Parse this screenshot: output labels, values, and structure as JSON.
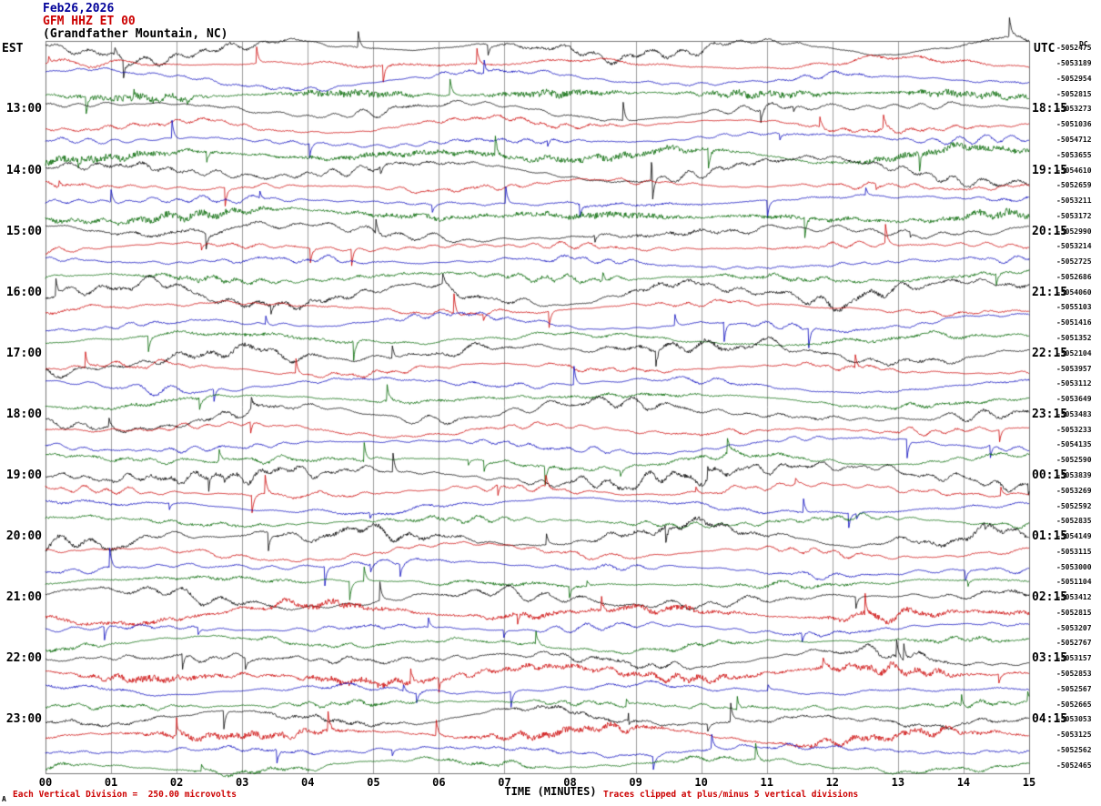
{
  "header": {
    "date": "Feb26,2026",
    "station_line": "GFM HHZ ET 00",
    "location_line": "(Grandfather Mountain, NC)",
    "left_timezone": "EST",
    "right_timezone": "UTC",
    "dc_column_header": "DC"
  },
  "footer": {
    "corner_marker": "A",
    "scale_note": "Each Vertical Division =  250.00 microvolts",
    "clip_note": "Traces clipped at plus/minus 5 vertical divisions"
  },
  "x_axis": {
    "title": "TIME (MINUTES)"
  },
  "chart_data": {
    "type": "line",
    "subtype": "helicorder-seismogram",
    "title": "GFM HHZ ET 00 (Grandfather Mountain, NC) Feb26,2026",
    "xlabel": "TIME (MINUTES)",
    "x_range_minutes": [
      0,
      15
    ],
    "x_tick_labels": [
      "00",
      "01",
      "02",
      "03",
      "04",
      "05",
      "06",
      "07",
      "08",
      "09",
      "10",
      "11",
      "12",
      "13",
      "14",
      "15"
    ],
    "num_rows": 48,
    "minutes_per_row": 15,
    "first_row_start_local": "12:00 EST",
    "left_hour_labels": [
      "13:00",
      "14:00",
      "15:00",
      "16:00",
      "17:00",
      "18:00",
      "19:00",
      "20:00",
      "21:00",
      "22:00",
      "23:00"
    ],
    "right_hour_labels": [
      "18:15",
      "19:15",
      "20:15",
      "21:15",
      "22:15",
      "23:15",
      "00:15",
      "01:15",
      "02:15",
      "03:15",
      "04:15"
    ],
    "hour_label_first_row": 4,
    "hour_label_row_step": 4,
    "dc_offset_values": [
      "-5052475",
      "-5053189",
      "-5052954",
      "-5052815",
      "-5053273",
      "-5051036",
      "-5054712",
      "-5053655",
      "-5054610",
      "-5052659",
      "-5053211",
      "-5053172",
      "-5052990",
      "-5053214",
      "-5052725",
      "-5052686",
      "-5054060",
      "-5055103",
      "-5051416",
      "-5051352",
      "-5052104",
      "-5053957",
      "-5053112",
      "-5053649",
      "-5053483",
      "-5053233",
      "-5054135",
      "-5052590",
      "-5053839",
      "-5053269",
      "-5052592",
      "-5052835",
      "-5054149",
      "-5053115",
      "-5053000",
      "-5051104",
      "-5053412",
      "-5052815",
      "-5053207",
      "-5052767",
      "-5053157",
      "-5052853",
      "-5052567",
      "-5052665",
      "-5053053",
      "-5053125",
      "-5052562",
      "-5052465"
    ],
    "trace_colors": [
      "#000000",
      "#cc0000",
      "#0000bb",
      "#006600"
    ],
    "row_amp_low": [
      12,
      8,
      8,
      6,
      10,
      8,
      8,
      7,
      11,
      8,
      8,
      8,
      13,
      8,
      8,
      8,
      18,
      8,
      8,
      8,
      18,
      8,
      8,
      8,
      14,
      8,
      8,
      8,
      18,
      8,
      8,
      8,
      20,
      8,
      8,
      8,
      14,
      10,
      8,
      8,
      12,
      10,
      8,
      8,
      10,
      10,
      8,
      8
    ],
    "row_amp_high": [
      1.5,
      1.2,
      1.0,
      3.5,
      1.0,
      1.2,
      1.0,
      3.5,
      1.5,
      1.0,
      1.0,
      3.5,
      1.5,
      1.0,
      1.0,
      2.0,
      2.0,
      1.0,
      1.0,
      1.5,
      2.0,
      1.0,
      1.0,
      1.5,
      1.5,
      1.0,
      1.0,
      1.5,
      2.0,
      1.0,
      1.0,
      1.5,
      2.0,
      1.0,
      1.0,
      1.5,
      1.5,
      3.0,
      1.0,
      1.5,
      1.5,
      3.5,
      1.0,
      1.5,
      1.5,
      3.0,
      1.2,
      1.5
    ],
    "clip_divisions": 5,
    "microvolts_per_division": 250.0,
    "grid": true,
    "waveform_note": "Continuous seismic background noise; exact sample values are not recoverable from the image and are rendered as seeded pseudo-random traces matching per-row amplitude and texture."
  }
}
